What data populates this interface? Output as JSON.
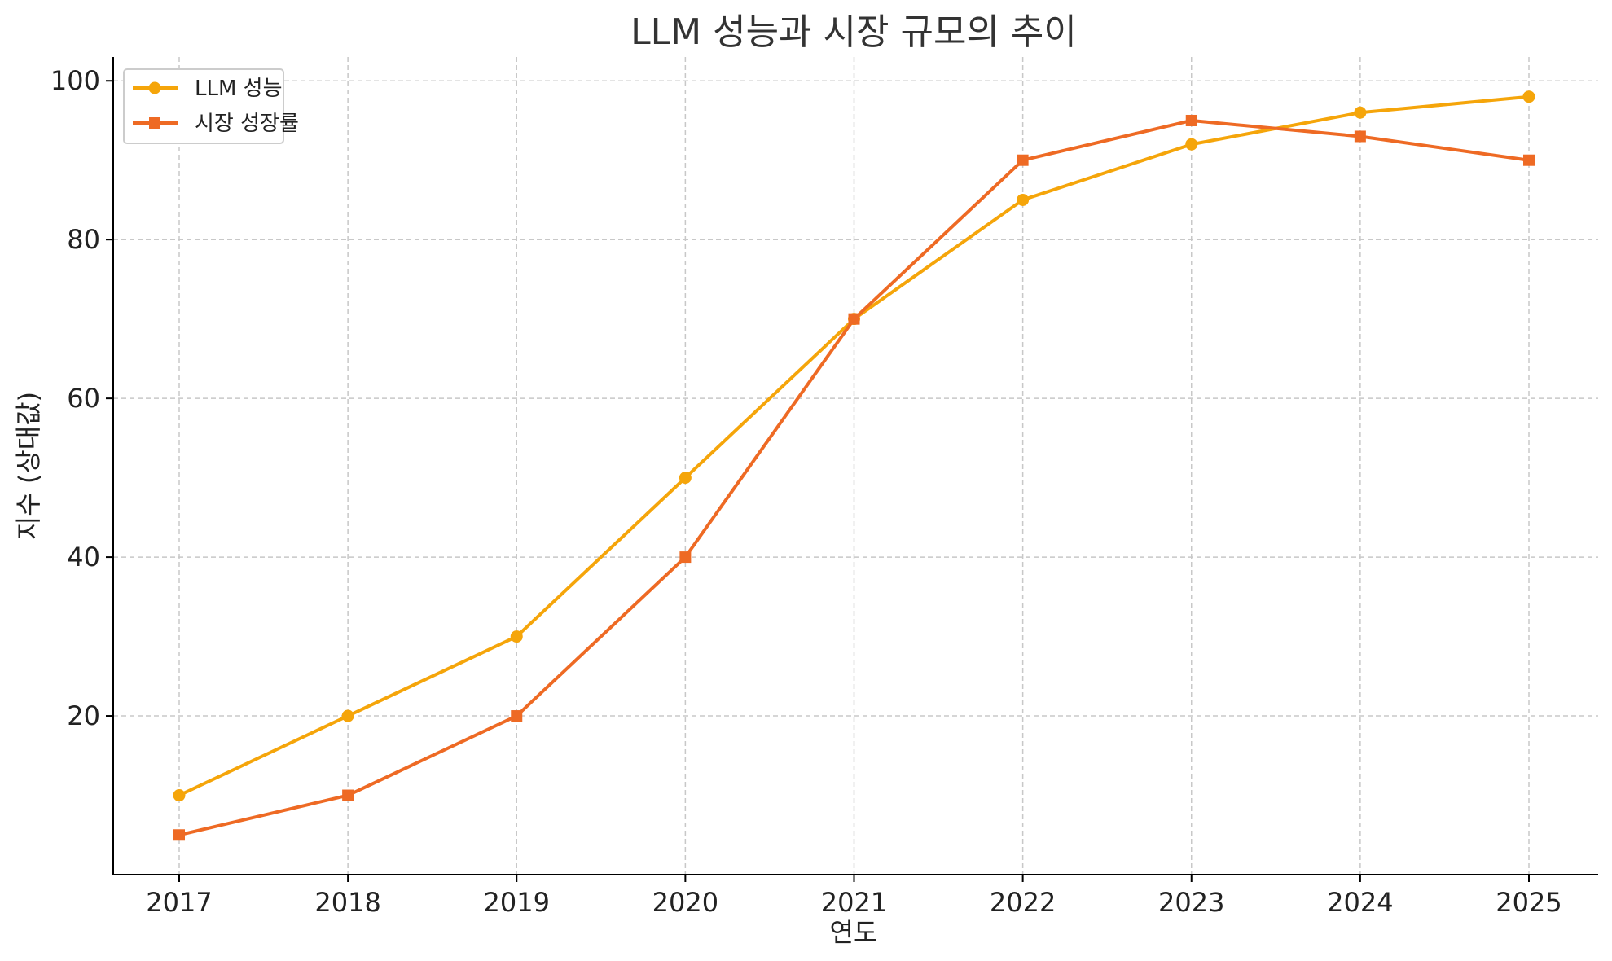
{
  "chart_data": {
    "type": "line",
    "title": "LLM 성능과 시장 규모의 추이",
    "xlabel": "연도",
    "ylabel": "지수 (상대값)",
    "x": [
      2017,
      2018,
      2019,
      2020,
      2021,
      2022,
      2023,
      2024,
      2025
    ],
    "y_ticks": [
      20,
      40,
      60,
      80,
      100
    ],
    "ylim": [
      0,
      103
    ],
    "grid": true,
    "legend_position": "top-left",
    "series": [
      {
        "name": "LLM 성능",
        "color": "#F5A50A",
        "marker": "circle",
        "values": [
          10,
          20,
          30,
          50,
          70,
          85,
          92,
          96,
          98
        ]
      },
      {
        "name": "시장 성장률",
        "color": "#EE6A24",
        "marker": "square",
        "values": [
          5,
          10,
          20,
          40,
          70,
          90,
          95,
          93,
          90
        ]
      }
    ]
  }
}
